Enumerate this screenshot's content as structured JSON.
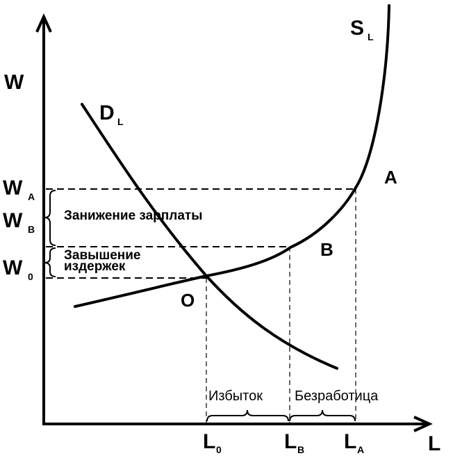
{
  "axes": {
    "y_label": "W",
    "x_label": "L"
  },
  "curves": {
    "supply": {
      "label": "S",
      "sub": "L"
    },
    "demand": {
      "label": "D",
      "sub": "L"
    }
  },
  "points": {
    "A": "A",
    "B": "B",
    "O": "O"
  },
  "y_ticks": [
    {
      "label": "W",
      "sub": "A"
    },
    {
      "label": "W",
      "sub": "B"
    },
    {
      "label": "W",
      "sub": "0"
    }
  ],
  "x_ticks": [
    {
      "label": "L",
      "sub": "0"
    },
    {
      "label": "L",
      "sub": "B"
    },
    {
      "label": "L",
      "sub": "A"
    }
  ],
  "annotations": {
    "wage_understatement": "Занижение зарплаты",
    "cost_overstatement_1": "Завышение",
    "cost_overstatement_2": "издержек",
    "surplus": "Избыток",
    "unemployment": "Безработица"
  }
}
